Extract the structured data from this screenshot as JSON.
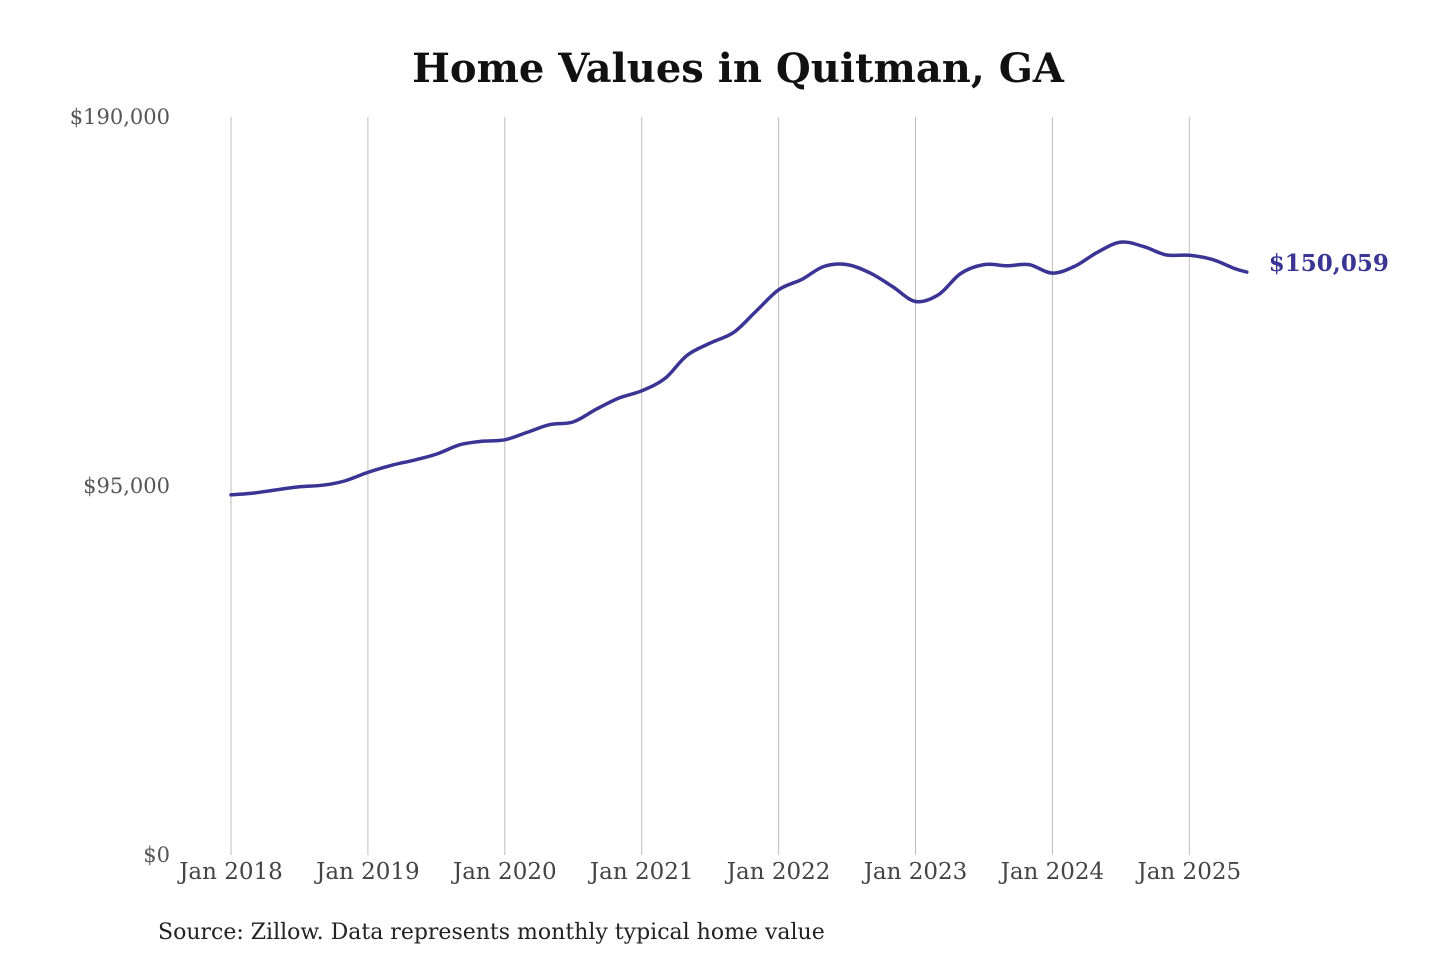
{
  "chart_data": {
    "type": "line",
    "title": "Home Values in Quitman, GA",
    "source": "Source: Zillow. Data represents monthly typical home value",
    "ylim": [
      0,
      190000
    ],
    "y_ticks": [
      {
        "value": 0,
        "label": "$0"
      },
      {
        "value": 95000,
        "label": "$95,000"
      },
      {
        "value": 190000,
        "label": "$190,000"
      }
    ],
    "x_ticks": [
      {
        "value": 2018,
        "label": "Jan 2018"
      },
      {
        "value": 2019,
        "label": "Jan 2019"
      },
      {
        "value": 2020,
        "label": "Jan 2020"
      },
      {
        "value": 2021,
        "label": "Jan 2021"
      },
      {
        "value": 2022,
        "label": "Jan 2022"
      },
      {
        "value": 2023,
        "label": "Jan 2023"
      },
      {
        "value": 2024,
        "label": "Jan 2024"
      },
      {
        "value": 2025,
        "label": "Jan 2025"
      }
    ],
    "grid": "vertical",
    "line_color": "#3a3594",
    "end_label": "$150,059",
    "series": [
      {
        "x": [
          2018.0,
          2018.17,
          2018.33,
          2018.5,
          2018.67,
          2018.83,
          2019.0,
          2019.17,
          2019.33,
          2019.5,
          2019.67,
          2019.83,
          2020.0,
          2020.17,
          2020.33,
          2020.5,
          2020.67,
          2020.83,
          2021.0,
          2021.17,
          2021.33,
          2021.5,
          2021.67,
          2021.83,
          2022.0,
          2022.17,
          2022.33,
          2022.5,
          2022.67,
          2022.83,
          2023.0,
          2023.17,
          2023.33,
          2023.5,
          2023.67,
          2023.83,
          2024.0,
          2024.17,
          2024.33,
          2024.5,
          2024.67,
          2024.83,
          2025.0,
          2025.17,
          2025.33,
          2025.42
        ],
        "values": [
          92700,
          93200,
          94000,
          94800,
          95200,
          96300,
          98500,
          100300,
          101600,
          103200,
          105600,
          106500,
          106900,
          108900,
          110800,
          111500,
          114800,
          117600,
          119500,
          122700,
          128600,
          131800,
          134500,
          139800,
          145500,
          148200,
          151500,
          152000,
          149800,
          146400,
          142500,
          144300,
          149700,
          152000,
          151700,
          152000,
          149800,
          151700,
          155200,
          157800,
          156600,
          154500,
          154400,
          153300,
          151000,
          150059
        ]
      }
    ]
  }
}
